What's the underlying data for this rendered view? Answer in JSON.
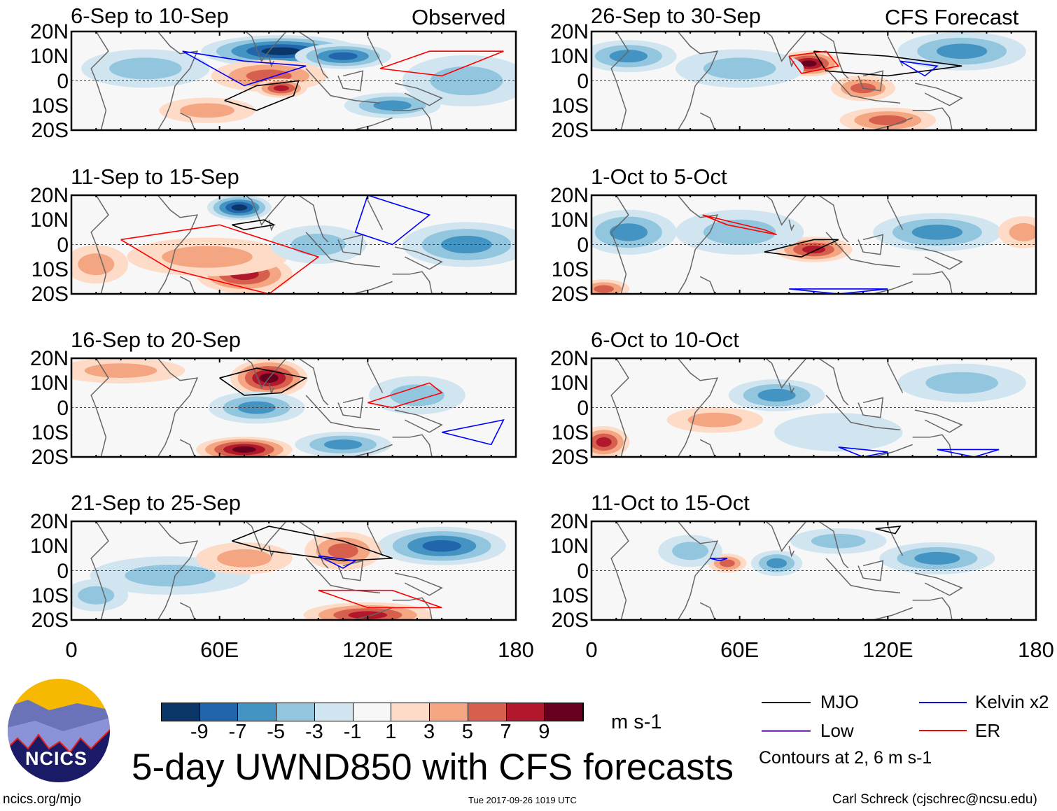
{
  "figure": {
    "title": "5-day UWND850 with CFS forecasts",
    "left_header": "Observed",
    "right_header": "CFS Forecast",
    "units": "m s-1",
    "footer_left": "ncics.org/mjo",
    "footer_center": "Tue 2017-09-26 1019 UTC",
    "footer_right": "Carl Schreck (cjschrec@ncsu.edu)",
    "logo_text": "NCICS"
  },
  "axes": {
    "lat_labels": [
      "20N",
      "10N",
      "0",
      "10S",
      "20S"
    ],
    "lon_labels": [
      "0",
      "60E",
      "120E",
      "180"
    ]
  },
  "colorbar": {
    "labels": [
      "-9",
      "-7",
      "-5",
      "-3",
      "-1",
      "1",
      "3",
      "5",
      "7",
      "9"
    ],
    "colors": [
      "#0b3768",
      "#2166ac",
      "#4393c3",
      "#92c5de",
      "#d1e5f0",
      "#f7f7f7",
      "#fddbc7",
      "#f4a582",
      "#d6604d",
      "#b2182b",
      "#67001f"
    ]
  },
  "legend": {
    "items": [
      {
        "label": "MJO",
        "color": "#000000"
      },
      {
        "label": "Kelvin x2",
        "color": "#0000ff"
      },
      {
        "label": "Low",
        "color": "#9a4fd6"
      },
      {
        "label": "ER",
        "color": "#ff0000"
      }
    ],
    "note": "Contours at 2, 6 m s-1"
  },
  "panels": [
    {
      "title": "6-Sep to 10-Sep",
      "blobs": [
        [
          85,
          12,
          -9,
          25,
          5
        ],
        [
          110,
          10,
          -7,
          15,
          4
        ],
        [
          80,
          2,
          5,
          18,
          5
        ],
        [
          85,
          -3,
          7,
          8,
          3
        ],
        [
          30,
          5,
          -3,
          20,
          6
        ],
        [
          130,
          -10,
          -5,
          15,
          4
        ],
        [
          160,
          0,
          -3,
          20,
          8
        ],
        [
          55,
          -12,
          3,
          15,
          4
        ]
      ],
      "contours": [
        [
          "#000",
          [
            [
              62,
              -8
            ],
            [
              75,
              -2
            ],
            [
              92,
              0
            ],
            [
              90,
              -6
            ],
            [
              75,
              -12
            ],
            [
              62,
              -8
            ]
          ]
        ],
        [
          "#f00",
          [
            [
              125,
              5
            ],
            [
              145,
              12
            ],
            [
              175,
              12
            ],
            [
              150,
              2
            ],
            [
              125,
              5
            ]
          ]
        ],
        [
          "#00f",
          [
            [
              45,
              12
            ],
            [
              70,
              8
            ],
            [
              95,
              6
            ],
            [
              70,
              -2
            ],
            [
              45,
              12
            ]
          ]
        ]
      ]
    },
    {
      "title": "11-Sep to 15-Sep",
      "blobs": [
        [
          68,
          15,
          -9,
          10,
          4
        ],
        [
          70,
          -12,
          7,
          15,
          6
        ],
        [
          55,
          -5,
          3,
          25,
          6
        ],
        [
          160,
          0,
          -5,
          20,
          7
        ],
        [
          100,
          0,
          -3,
          15,
          6
        ],
        [
          10,
          -8,
          3,
          10,
          6
        ]
      ],
      "contours": [
        [
          "#000",
          [
            [
              65,
              8
            ],
            [
              78,
              10
            ],
            [
              82,
              8
            ],
            [
              70,
              6
            ],
            [
              65,
              8
            ]
          ]
        ],
        [
          "#f00",
          [
            [
              20,
              2
            ],
            [
              60,
              8
            ],
            [
              100,
              -5
            ],
            [
              80,
              -20
            ],
            [
              40,
              -10
            ],
            [
              20,
              2
            ]
          ]
        ],
        [
          "#00f",
          [
            [
              120,
              20
            ],
            [
              145,
              12
            ],
            [
              130,
              0
            ],
            [
              115,
              5
            ],
            [
              120,
              20
            ]
          ]
        ]
      ]
    },
    {
      "title": "16-Sep to 20-Sep",
      "blobs": [
        [
          80,
          12,
          9,
          12,
          6
        ],
        [
          75,
          0,
          -5,
          15,
          5
        ],
        [
          70,
          -17,
          9,
          15,
          4
        ],
        [
          110,
          -15,
          -5,
          15,
          4
        ],
        [
          140,
          5,
          -3,
          15,
          6
        ],
        [
          20,
          15,
          3,
          20,
          4
        ]
      ],
      "contours": [
        [
          "#000",
          [
            [
              60,
              12
            ],
            [
              75,
              16
            ],
            [
              95,
              12
            ],
            [
              85,
              6
            ],
            [
              70,
              5
            ],
            [
              60,
              12
            ]
          ]
        ],
        [
          "#f00",
          [
            [
              120,
              2
            ],
            [
              145,
              10
            ],
            [
              150,
              6
            ],
            [
              130,
              0
            ],
            [
              120,
              2
            ]
          ]
        ],
        [
          "#00f",
          [
            [
              150,
              -10
            ],
            [
              175,
              -5
            ],
            [
              170,
              -15
            ],
            [
              150,
              -10
            ]
          ]
        ]
      ]
    },
    {
      "title": "21-Sep to 25-Sep",
      "blobs": [
        [
          150,
          10,
          -7,
          20,
          6
        ],
        [
          110,
          8,
          5,
          12,
          6
        ],
        [
          120,
          -18,
          7,
          20,
          4
        ],
        [
          40,
          -2,
          -3,
          25,
          6
        ],
        [
          10,
          -10,
          -3,
          10,
          5
        ],
        [
          70,
          5,
          3,
          15,
          5
        ]
      ],
      "contours": [
        [
          "#000",
          [
            [
              65,
              12
            ],
            [
              80,
              18
            ],
            [
              110,
              12
            ],
            [
              130,
              5
            ],
            [
              110,
              4
            ],
            [
              80,
              8
            ],
            [
              65,
              12
            ]
          ]
        ],
        [
          "#f00",
          [
            [
              100,
              -8
            ],
            [
              130,
              -8
            ],
            [
              150,
              -15
            ],
            [
              120,
              -15
            ],
            [
              100,
              -8
            ]
          ]
        ],
        [
          "#00f",
          [
            [
              100,
              6
            ],
            [
              115,
              4
            ],
            [
              110,
              1
            ],
            [
              100,
              6
            ]
          ]
        ]
      ]
    },
    {
      "title": "26-Sep to 30-Sep",
      "blobs": [
        [
          88,
          7,
          9,
          10,
          4
        ],
        [
          110,
          -3,
          5,
          10,
          4
        ],
        [
          120,
          -16,
          5,
          15,
          4
        ],
        [
          15,
          10,
          -5,
          15,
          5
        ],
        [
          150,
          12,
          -5,
          20,
          6
        ],
        [
          60,
          5,
          -3,
          20,
          6
        ]
      ],
      "contours": [
        [
          "#000",
          [
            [
              90,
              12
            ],
            [
              120,
              10
            ],
            [
              150,
              6
            ],
            [
              120,
              2
            ],
            [
              95,
              4
            ],
            [
              90,
              12
            ]
          ]
        ],
        [
          "#f00",
          [
            [
              80,
              10
            ],
            [
              95,
              12
            ],
            [
              100,
              6
            ],
            [
              85,
              3
            ],
            [
              80,
              10
            ]
          ]
        ],
        [
          "#00f",
          [
            [
              125,
              8
            ],
            [
              140,
              6
            ],
            [
              135,
              2
            ],
            [
              125,
              8
            ]
          ]
        ]
      ]
    },
    {
      "title": "1-Oct to 5-Oct",
      "blobs": [
        [
          90,
          -2,
          7,
          12,
          4
        ],
        [
          15,
          5,
          -5,
          15,
          7
        ],
        [
          60,
          5,
          -3,
          20,
          7
        ],
        [
          140,
          5,
          -5,
          20,
          6
        ],
        [
          175,
          5,
          3,
          8,
          5
        ],
        [
          5,
          -18,
          5,
          8,
          3
        ]
      ],
      "contours": [
        [
          "#000",
          [
            [
              70,
              -3
            ],
            [
              90,
              2
            ],
            [
              100,
              2
            ],
            [
              85,
              -5
            ],
            [
              70,
              -3
            ]
          ]
        ],
        [
          "#f00",
          [
            [
              45,
              12
            ],
            [
              70,
              6
            ],
            [
              75,
              4
            ],
            [
              55,
              8
            ],
            [
              45,
              12
            ]
          ]
        ],
        [
          "#00f",
          [
            [
              80,
              -18
            ],
            [
              120,
              -18
            ],
            [
              100,
              -20
            ],
            [
              80,
              -18
            ]
          ]
        ]
      ]
    },
    {
      "title": "6-Oct to 10-Oct",
      "blobs": [
        [
          75,
          5,
          -5,
          15,
          5
        ],
        [
          5,
          -14,
          7,
          8,
          5
        ],
        [
          50,
          -5,
          3,
          15,
          4
        ],
        [
          150,
          10,
          -3,
          20,
          6
        ],
        [
          100,
          -10,
          -1,
          20,
          6
        ]
      ],
      "contours": [
        [
          "#00f",
          [
            [
              100,
              -16
            ],
            [
              120,
              -18
            ],
            [
              110,
              -20
            ],
            [
              100,
              -16
            ]
          ]
        ],
        [
          "#00f",
          [
            [
              140,
              -17
            ],
            [
              165,
              -17
            ],
            [
              155,
              -20
            ],
            [
              140,
              -17
            ]
          ]
        ]
      ]
    },
    {
      "title": "11-Oct to 15-Oct",
      "blobs": [
        [
          75,
          3,
          -5,
          8,
          4
        ],
        [
          55,
          3,
          5,
          6,
          3
        ],
        [
          140,
          5,
          -5,
          18,
          5
        ],
        [
          40,
          8,
          -3,
          10,
          5
        ],
        [
          100,
          12,
          -3,
          15,
          4
        ]
      ],
      "contours": [
        [
          "#000",
          [
            [
              115,
              17
            ],
            [
              125,
              18
            ],
            [
              123,
              15
            ],
            [
              115,
              17
            ]
          ]
        ],
        [
          "#00f",
          [
            [
              48,
              5
            ],
            [
              55,
              5
            ],
            [
              52,
              4
            ],
            [
              48,
              5
            ]
          ]
        ]
      ]
    }
  ]
}
